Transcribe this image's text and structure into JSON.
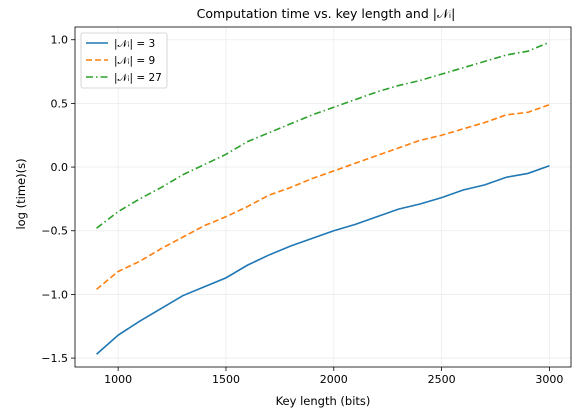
{
  "chart_data": {
    "type": "line",
    "title": "Computation time vs. key length and |𝒩ᵢ|",
    "xlabel": "Key length (bits)",
    "ylabel": "log (time)(s)",
    "xlim": [
      800,
      3100
    ],
    "ylim": [
      -1.57,
      1.1
    ],
    "xticks": [
      1000,
      1500,
      2000,
      2500,
      3000
    ],
    "yticks": [
      -1.5,
      -1.0,
      -0.5,
      0.0,
      0.5,
      1.0
    ],
    "ytick_labels": [
      "−1.5",
      "−1.0",
      "−0.5",
      "0.0",
      "0.5",
      "1.0"
    ],
    "grid": true,
    "legend_position": "top-left",
    "x": [
      900,
      1000,
      1100,
      1200,
      1300,
      1400,
      1500,
      1600,
      1700,
      1800,
      1900,
      2000,
      2100,
      2200,
      2300,
      2400,
      2500,
      2600,
      2700,
      2800,
      2900,
      3000
    ],
    "series": [
      {
        "name": "|𝒩ᵢ| = 3",
        "color": "#1f77b4",
        "dash": "solid",
        "values": [
          -1.47,
          -1.32,
          -1.21,
          -1.11,
          -1.01,
          -0.94,
          -0.87,
          -0.77,
          -0.69,
          -0.62,
          -0.56,
          -0.5,
          -0.45,
          -0.39,
          -0.33,
          -0.29,
          -0.24,
          -0.18,
          -0.14,
          -0.08,
          -0.05,
          0.01
        ]
      },
      {
        "name": "|𝒩ᵢ| = 9",
        "color": "#ff7f0e",
        "dash": "dashed",
        "values": [
          -0.96,
          -0.82,
          -0.74,
          -0.64,
          -0.55,
          -0.46,
          -0.39,
          -0.31,
          -0.22,
          -0.16,
          -0.09,
          -0.03,
          0.03,
          0.09,
          0.15,
          0.21,
          0.25,
          0.3,
          0.35,
          0.41,
          0.43,
          0.49
        ]
      },
      {
        "name": "|𝒩ᵢ| = 27",
        "color": "#2ca02c",
        "dash": "dashdot",
        "values": [
          -0.48,
          -0.35,
          -0.25,
          -0.16,
          -0.06,
          0.02,
          0.1,
          0.2,
          0.27,
          0.34,
          0.41,
          0.47,
          0.53,
          0.59,
          0.64,
          0.68,
          0.73,
          0.78,
          0.83,
          0.88,
          0.91,
          0.98
        ]
      }
    ]
  }
}
